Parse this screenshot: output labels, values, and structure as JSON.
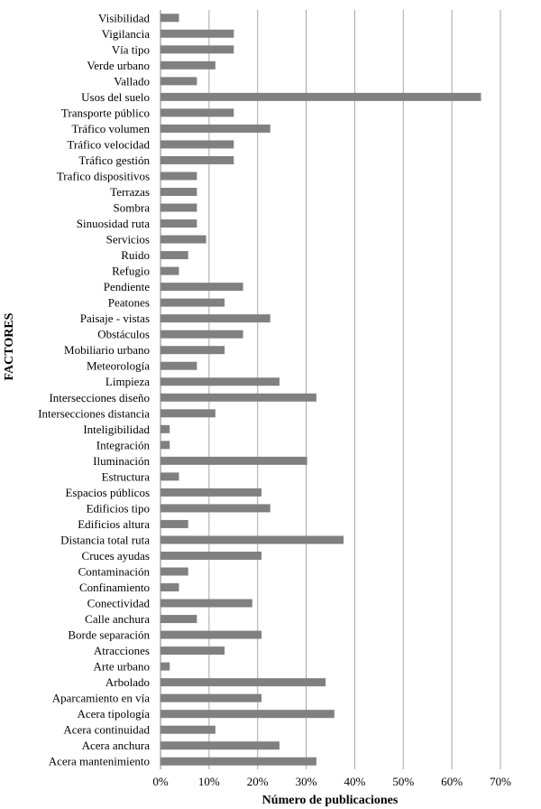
{
  "chart_data": {
    "type": "bar",
    "orientation": "horizontal",
    "xlabel": "Número de publicaciones",
    "ylabel": "FACTORES",
    "xlim": [
      0,
      70
    ],
    "x_ticks": [
      "0%",
      "10%",
      "20%",
      "30%",
      "40%",
      "50%",
      "60%",
      "70%"
    ],
    "grid": "vertical",
    "legend": "none",
    "bar_color": "#808080",
    "grid_color": "#a6a6a6",
    "categories": [
      "Visibilidad",
      "Vigilancia",
      "Vía tipo",
      "Verde urbano",
      "Vallado",
      "Usos del suelo",
      "Transporte público",
      "Tráfico volumen",
      "Tráfico velocidad",
      "Tráfico gestión",
      "Trafico dispositivos",
      "Terrazas",
      "Sombra",
      "Sinuosidad ruta",
      "Servicios",
      "Ruido",
      "Refugio",
      "Pendiente",
      "Peatones",
      "Paisaje - vistas",
      "Obstáculos",
      "Mobiliario urbano",
      "Meteorología",
      "Limpieza",
      "Intersecciones diseño",
      "Intersecciones distancia",
      "Inteligibilidad",
      "Integración",
      "Iluminación",
      "Estructura",
      "Espacios públicos",
      "Edificios tipo",
      "Edificios altura",
      "Distancia total ruta",
      "Cruces ayudas",
      "Contaminación",
      "Confinamiento",
      "Conectividad",
      "Calle anchura",
      "Borde separación",
      "Atracciones",
      "Arte urbano",
      "Arbolado",
      "Aparcamiento en vía",
      "Acera tipología",
      "Acera continuidad",
      "Acera anchura",
      "Acera mantenimiento"
    ],
    "values": [
      3.8,
      15.1,
      15.1,
      11.3,
      7.5,
      66.0,
      15.1,
      22.6,
      15.1,
      15.1,
      7.5,
      7.5,
      7.5,
      7.5,
      9.4,
      5.7,
      3.8,
      17.0,
      13.2,
      22.6,
      17.0,
      13.2,
      7.5,
      24.5,
      32.1,
      11.3,
      1.9,
      1.9,
      30.2,
      3.8,
      20.8,
      22.6,
      5.7,
      37.7,
      20.8,
      5.7,
      3.8,
      18.9,
      7.5,
      20.8,
      13.2,
      1.9,
      34.0,
      20.8,
      35.8,
      11.3,
      24.5,
      32.1
    ]
  }
}
